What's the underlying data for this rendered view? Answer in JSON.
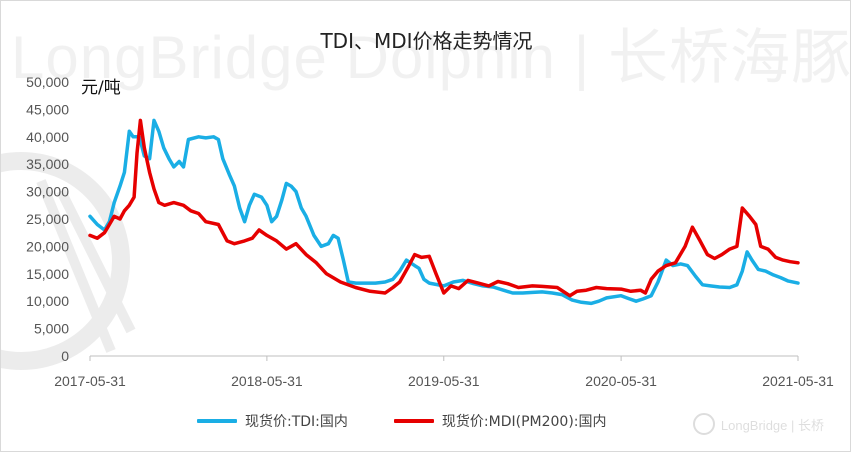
{
  "title": "TDI、MDI价格走势情况",
  "watermark": {
    "text": "LongBridge Dolphin | 长桥海豚投研",
    "brand_text": "LongBridge | 长桥",
    "logo_icon": "longbridge-logo-icon"
  },
  "colors": {
    "tdi": "#1aaee5",
    "mdi": "#e60000",
    "axis": "#bfbfbf"
  },
  "chart_data": {
    "type": "line",
    "title": "TDI、MDI价格走势情况",
    "ylabel": "元/吨",
    "xlabel": "",
    "ylim": [
      0,
      50000
    ],
    "yticks": [
      0,
      5000,
      10000,
      15000,
      20000,
      25000,
      30000,
      35000,
      40000,
      45000,
      50000
    ],
    "ytick_labels": [
      "0",
      "5,000",
      "10,000",
      "15,000",
      "20,000",
      "25,000",
      "30,000",
      "35,000",
      "40,000",
      "45,000",
      "50,000"
    ],
    "xlim": [
      "2017-05-31",
      "2021-05-31"
    ],
    "xtick_labels": [
      "2017-05-31",
      "2018-05-31",
      "2019-05-31",
      "2020-05-31",
      "2021-05-31"
    ],
    "grid": false,
    "legend_position": "bottom",
    "series": [
      {
        "name": "现货价:TDI:国内",
        "color": "#1aaee5",
        "points": [
          [
            "2017-05-31",
            25500
          ],
          [
            "2017-06-15",
            24000
          ],
          [
            "2017-06-30",
            23000
          ],
          [
            "2017-07-10",
            24500
          ],
          [
            "2017-07-20",
            28000
          ],
          [
            "2017-08-01",
            31000
          ],
          [
            "2017-08-10",
            33500
          ],
          [
            "2017-08-20",
            41000
          ],
          [
            "2017-08-28",
            40000
          ],
          [
            "2017-09-10",
            40000
          ],
          [
            "2017-09-20",
            36500
          ],
          [
            "2017-10-01",
            36000
          ],
          [
            "2017-10-10",
            43000
          ],
          [
            "2017-10-20",
            41000
          ],
          [
            "2017-10-30",
            38000
          ],
          [
            "2017-11-10",
            36000
          ],
          [
            "2017-11-20",
            34500
          ],
          [
            "2017-12-01",
            35500
          ],
          [
            "2017-12-10",
            34500
          ],
          [
            "2017-12-20",
            39500
          ],
          [
            "2018-01-10",
            40000
          ],
          [
            "2018-01-25",
            39800
          ],
          [
            "2018-02-10",
            40000
          ],
          [
            "2018-02-20",
            39500
          ],
          [
            "2018-03-01",
            36000
          ],
          [
            "2018-03-15",
            33000
          ],
          [
            "2018-03-25",
            31000
          ],
          [
            "2018-04-05",
            27000
          ],
          [
            "2018-04-15",
            24500
          ],
          [
            "2018-04-25",
            27500
          ],
          [
            "2018-05-05",
            29500
          ],
          [
            "2018-05-20",
            29000
          ],
          [
            "2018-05-31",
            27500
          ],
          [
            "2018-06-10",
            24500
          ],
          [
            "2018-06-20",
            25500
          ],
          [
            "2018-07-01",
            28500
          ],
          [
            "2018-07-10",
            31500
          ],
          [
            "2018-07-20",
            31000
          ],
          [
            "2018-07-30",
            30000
          ],
          [
            "2018-08-10",
            27000
          ],
          [
            "2018-08-20",
            25500
          ],
          [
            "2018-09-05",
            22000
          ],
          [
            "2018-09-20",
            20000
          ],
          [
            "2018-10-05",
            20500
          ],
          [
            "2018-10-15",
            22000
          ],
          [
            "2018-10-25",
            21500
          ],
          [
            "2018-11-05",
            17500
          ],
          [
            "2018-11-15",
            13500
          ],
          [
            "2018-12-01",
            13300
          ],
          [
            "2018-12-20",
            13300
          ],
          [
            "2019-01-10",
            13300
          ],
          [
            "2019-01-30",
            13500
          ],
          [
            "2019-02-15",
            14000
          ],
          [
            "2019-03-01",
            15500
          ],
          [
            "2019-03-15",
            17500
          ],
          [
            "2019-04-01",
            16500
          ],
          [
            "2019-04-10",
            16000
          ],
          [
            "2019-04-20",
            14000
          ],
          [
            "2019-05-01",
            13300
          ],
          [
            "2019-05-31",
            12800
          ],
          [
            "2019-06-20",
            13500
          ],
          [
            "2019-07-10",
            13800
          ],
          [
            "2019-08-01",
            13200
          ],
          [
            "2019-08-20",
            12800
          ],
          [
            "2019-09-10",
            12600
          ],
          [
            "2019-10-01",
            12000
          ],
          [
            "2019-10-20",
            11500
          ],
          [
            "2019-11-10",
            11500
          ],
          [
            "2019-12-01",
            11600
          ],
          [
            "2019-12-20",
            11700
          ],
          [
            "2020-01-10",
            11500
          ],
          [
            "2020-01-30",
            11200
          ],
          [
            "2020-02-20",
            10200
          ],
          [
            "2020-03-10",
            9800
          ],
          [
            "2020-03-30",
            9600
          ],
          [
            "2020-04-15",
            10000
          ],
          [
            "2020-05-01",
            10600
          ],
          [
            "2020-05-31",
            11000
          ],
          [
            "2020-06-15",
            10500
          ],
          [
            "2020-07-01",
            10000
          ],
          [
            "2020-07-15",
            10400
          ],
          [
            "2020-08-01",
            11000
          ],
          [
            "2020-08-15",
            13500
          ],
          [
            "2020-09-01",
            17500
          ],
          [
            "2020-09-15",
            16500
          ],
          [
            "2020-10-01",
            16800
          ],
          [
            "2020-10-15",
            16500
          ],
          [
            "2020-11-01",
            14500
          ],
          [
            "2020-11-15",
            13000
          ],
          [
            "2020-12-01",
            12800
          ],
          [
            "2020-12-20",
            12600
          ],
          [
            "2021-01-10",
            12500
          ],
          [
            "2021-01-25",
            13000
          ],
          [
            "2021-02-05",
            15500
          ],
          [
            "2021-02-15",
            19000
          ],
          [
            "2021-02-25",
            17500
          ],
          [
            "2021-03-10",
            15800
          ],
          [
            "2021-03-25",
            15500
          ],
          [
            "2021-04-10",
            14800
          ],
          [
            "2021-04-25",
            14300
          ],
          [
            "2021-05-10",
            13700
          ],
          [
            "2021-05-31",
            13300
          ]
        ]
      },
      {
        "name": "现货价:MDI(PM200):国内",
        "color": "#e60000",
        "points": [
          [
            "2017-05-31",
            22000
          ],
          [
            "2017-06-15",
            21500
          ],
          [
            "2017-06-30",
            22500
          ],
          [
            "2017-07-10",
            24000
          ],
          [
            "2017-07-20",
            25500
          ],
          [
            "2017-08-01",
            25000
          ],
          [
            "2017-08-10",
            26500
          ],
          [
            "2017-08-20",
            27500
          ],
          [
            "2017-08-30",
            29000
          ],
          [
            "2017-09-05",
            37000
          ],
          [
            "2017-09-12",
            43000
          ],
          [
            "2017-09-20",
            38000
          ],
          [
            "2017-10-01",
            33500
          ],
          [
            "2017-10-10",
            30500
          ],
          [
            "2017-10-20",
            28000
          ],
          [
            "2017-11-01",
            27500
          ],
          [
            "2017-11-20",
            28000
          ],
          [
            "2017-12-10",
            27500
          ],
          [
            "2017-12-25",
            26500
          ],
          [
            "2018-01-10",
            26000
          ],
          [
            "2018-01-25",
            24500
          ],
          [
            "2018-02-20",
            24000
          ],
          [
            "2018-03-10",
            21000
          ],
          [
            "2018-03-25",
            20500
          ],
          [
            "2018-04-15",
            21000
          ],
          [
            "2018-05-01",
            21500
          ],
          [
            "2018-05-15",
            23000
          ],
          [
            "2018-05-31",
            22000
          ],
          [
            "2018-06-20",
            21000
          ],
          [
            "2018-07-10",
            19500
          ],
          [
            "2018-07-30",
            20500
          ],
          [
            "2018-08-20",
            18500
          ],
          [
            "2018-09-10",
            17000
          ],
          [
            "2018-10-01",
            15000
          ],
          [
            "2018-10-30",
            13500
          ],
          [
            "2018-11-30",
            12500
          ],
          [
            "2018-12-30",
            11800
          ],
          [
            "2019-01-30",
            11500
          ],
          [
            "2019-02-15",
            12500
          ],
          [
            "2019-03-01",
            13500
          ],
          [
            "2019-03-20",
            16500
          ],
          [
            "2019-04-01",
            18500
          ],
          [
            "2019-04-15",
            18000
          ],
          [
            "2019-05-01",
            18200
          ],
          [
            "2019-05-15",
            15000
          ],
          [
            "2019-05-31",
            11500
          ],
          [
            "2019-06-15",
            12800
          ],
          [
            "2019-07-01",
            12300
          ],
          [
            "2019-07-20",
            13800
          ],
          [
            "2019-08-10",
            13300
          ],
          [
            "2019-09-01",
            12800
          ],
          [
            "2019-09-20",
            13600
          ],
          [
            "2019-10-10",
            13200
          ],
          [
            "2019-11-01",
            12500
          ],
          [
            "2019-11-30",
            12800
          ],
          [
            "2019-12-20",
            12700
          ],
          [
            "2020-01-20",
            12500
          ],
          [
            "2020-02-15",
            11000
          ],
          [
            "2020-03-01",
            11800
          ],
          [
            "2020-03-20",
            12000
          ],
          [
            "2020-04-10",
            12500
          ],
          [
            "2020-05-01",
            12300
          ],
          [
            "2020-05-31",
            12200
          ],
          [
            "2020-06-20",
            11800
          ],
          [
            "2020-07-10",
            12000
          ],
          [
            "2020-07-20",
            11500
          ],
          [
            "2020-08-01",
            14000
          ],
          [
            "2020-08-15",
            15500
          ],
          [
            "2020-09-01",
            16500
          ],
          [
            "2020-09-20",
            17000
          ],
          [
            "2020-10-10",
            20000
          ],
          [
            "2020-10-25",
            23500
          ],
          [
            "2020-11-10",
            21000
          ],
          [
            "2020-11-25",
            18500
          ],
          [
            "2020-12-10",
            17800
          ],
          [
            "2020-12-25",
            18500
          ],
          [
            "2021-01-10",
            19500
          ],
          [
            "2021-01-25",
            20000
          ],
          [
            "2021-02-05",
            27000
          ],
          [
            "2021-02-20",
            25500
          ],
          [
            "2021-03-05",
            24000
          ],
          [
            "2021-03-15",
            20000
          ],
          [
            "2021-03-30",
            19500
          ],
          [
            "2021-04-15",
            18000
          ],
          [
            "2021-04-30",
            17500
          ],
          [
            "2021-05-15",
            17200
          ],
          [
            "2021-05-31",
            17000
          ]
        ]
      }
    ]
  }
}
